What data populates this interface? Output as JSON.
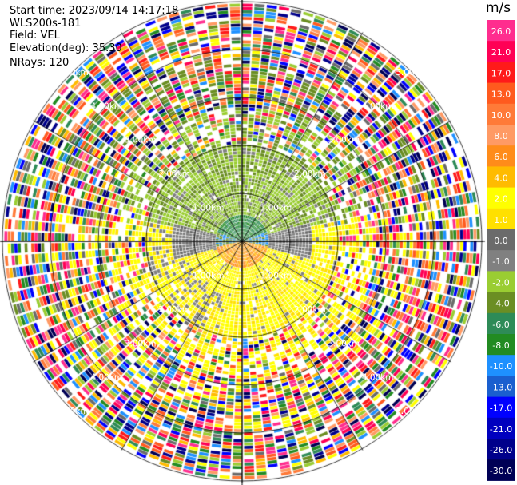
{
  "header": {
    "start_time": "Start time: 2023/09/14 14:17:18",
    "site": "WLS200s-181",
    "field": "Field: VEL",
    "elevation": "Elevation(deg): 35.30",
    "nrays": "NRays: 120"
  },
  "colorbar": {
    "unit": "m/s",
    "ticks": [
      "26.0",
      "21.0",
      "17.0",
      "13.0",
      "10.0",
      "8.0",
      "6.0",
      "4.0",
      "2.0",
      "1.0",
      "0.0",
      "-1.0",
      "-2.0",
      "-4.0",
      "-6.0",
      "-8.0",
      "-10.0",
      "-13.0",
      "-17.0",
      "-21.0",
      "-26.0",
      "-30.0"
    ],
    "colors": [
      "#ff2d8e",
      "#ff0055",
      "#ff1a1a",
      "#ff5a1e",
      "#ff7a38",
      "#ff9a64",
      "#ff8c1a",
      "#ffbb00",
      "#ffff00",
      "#ffe000",
      "#6b6b6b",
      "#808080",
      "#9acd32",
      "#6b8e23",
      "#2e8b57",
      "#228b22",
      "#1e90ff",
      "#1a5fcf",
      "#0000ff",
      "#0000bf",
      "#00008b",
      "#000055"
    ]
  },
  "chart_data": {
    "type": "ppi",
    "field": "VEL",
    "unit": "m/s",
    "nrays": 120,
    "elevation_deg": 35.3,
    "range_rings_km": [
      1.0,
      2.0,
      3.0,
      4.0,
      5.0
    ],
    "ring_label_text": [
      "1.00km",
      "2.00km",
      "3.00km",
      "4.00km",
      "5.00km"
    ],
    "color_scale_min": -30.0,
    "color_scale_max": 26.0,
    "valid_range_km": 2.0,
    "near_field_pattern": {
      "north_half": "green/olive (-2 to -6 m/s)",
      "south_half": "yellow (+1 to +4 m/s)",
      "west_east_edges": "grey (~0 m/s)"
    },
    "far_field": "noise (random colors)"
  }
}
